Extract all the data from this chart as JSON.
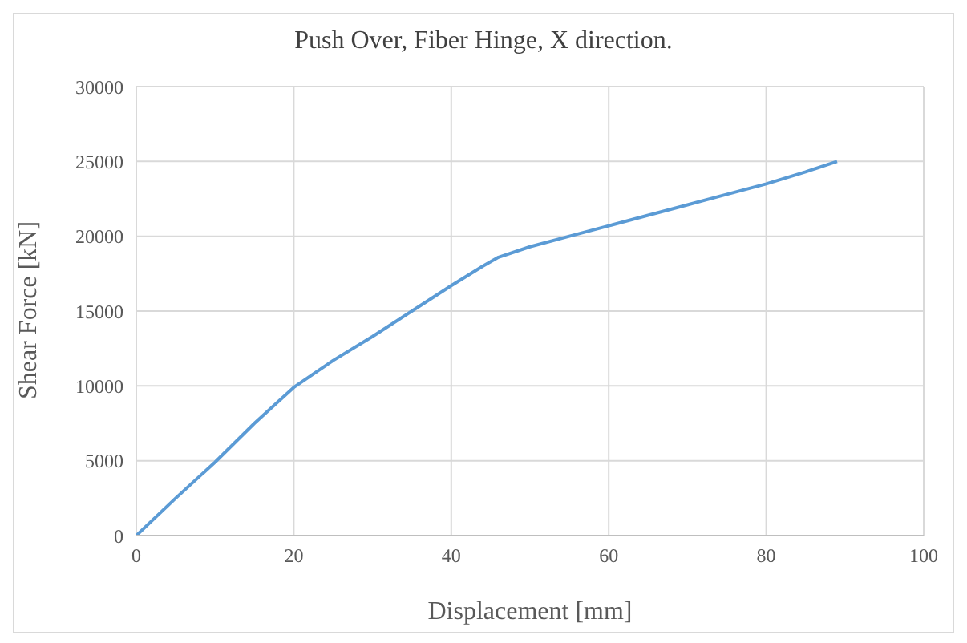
{
  "chart_data": {
    "type": "line",
    "title": "Push Over, Fiber Hinge, X direction.",
    "xlabel": "Displacement [mm]",
    "ylabel": "Shear Force [kN]",
    "x": [
      0,
      5,
      10,
      15,
      20,
      25,
      30,
      35,
      40,
      44,
      46,
      50,
      55,
      60,
      65,
      70,
      75,
      80,
      85,
      89
    ],
    "series": [
      {
        "color": "#5b9bd5",
        "values": [
          0,
          2500,
          4900,
          7500,
          9900,
          11700,
          13300,
          15000,
          16700,
          18000,
          18600,
          19300,
          20000,
          20700,
          21400,
          22100,
          22800,
          23500,
          24300,
          25000
        ]
      }
    ],
    "xlim": [
      0,
      100
    ],
    "xticks": [
      0,
      20,
      40,
      60,
      80,
      100
    ],
    "ylim": [
      0,
      30000
    ],
    "yticks": [
      0,
      5000,
      10000,
      15000,
      20000,
      25000,
      30000
    ],
    "grid": true,
    "marker": "none",
    "line_style": "solid"
  }
}
